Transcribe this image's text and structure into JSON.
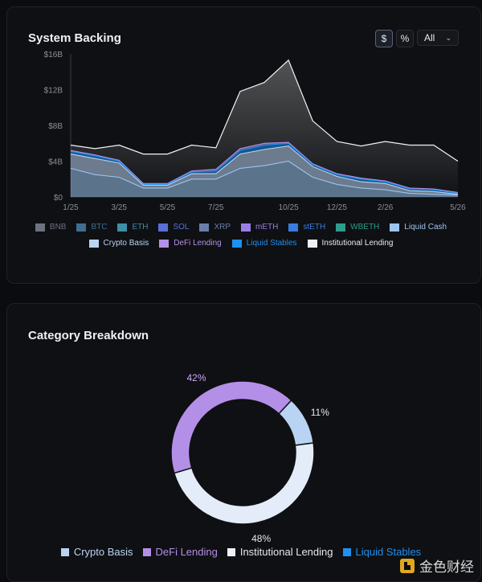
{
  "colors": {
    "BNB": "#6e7280",
    "BTC": "#3f6f8f",
    "ETH": "#3e8fa8",
    "SOL": "#5b6fd6",
    "XRP": "#6a7fa8",
    "mETH": "#9a7ee8",
    "stETH": "#3a7be0",
    "WBETH": "#2e9c8c",
    "Liquid Cash": "#9cc4f0",
    "Crypto Basis": "#b9d4f2",
    "DeFi Lending": "#b48fe8",
    "Liquid Stables": "#1e90f0",
    "Institutional Lending": "#eef0f4"
  },
  "system_backing": {
    "title": "System Backing",
    "toggle_dollar": "$",
    "toggle_percent": "%",
    "range_value": "All",
    "range_chevron_icon": "chevron-down-icon"
  },
  "category_breakdown": {
    "title": "Category Breakdown"
  },
  "watermark": {
    "text": "金色财经",
    "icon": "jinse-logo-icon"
  },
  "chart_data": [
    {
      "type": "area",
      "title": "System Backing",
      "x": [
        "1/25",
        "2/25",
        "3/25",
        "4/25",
        "5/25",
        "6/25",
        "7/25",
        "8/25",
        "9/25",
        "10/25",
        "11/25",
        "12/25",
        "1/26",
        "2/26",
        "3/26",
        "4/26",
        "5/26"
      ],
      "x_ticks": [
        "1/25",
        "3/25",
        "5/25",
        "7/25",
        "10/25",
        "12/25",
        "2/26",
        "5/26"
      ],
      "y_ticks": [
        "$0",
        "$4B",
        "$8B",
        "$12B",
        "$16B"
      ],
      "ylim": [
        0,
        16
      ],
      "y_unit": "$B",
      "stacked": true,
      "total": [
        5.8,
        5.4,
        5.8,
        4.8,
        4.8,
        5.8,
        5.5,
        11.8,
        12.8,
        15.3,
        8.5,
        6.2,
        5.7,
        6.2,
        5.8,
        5.8,
        4.0
      ],
      "series": [
        {
          "name": "Liquid Cash",
          "values": [
            3.2,
            2.5,
            2.2,
            1.0,
            1.0,
            2.0,
            2.0,
            3.2,
            3.5,
            4.0,
            2.2,
            1.4,
            1.0,
            0.8,
            0.4,
            0.3,
            0.2
          ]
        },
        {
          "name": "Crypto Basis",
          "values": [
            1.6,
            1.8,
            1.6,
            0.3,
            0.3,
            0.6,
            0.6,
            1.6,
            1.8,
            1.7,
            1.2,
            0.9,
            0.7,
            0.7,
            0.3,
            0.3,
            0.1
          ]
        },
        {
          "name": "Liquid Stables",
          "values": [
            0.3,
            0.3,
            0.2,
            0.1,
            0.1,
            0.2,
            0.3,
            0.4,
            0.5,
            0.3,
            0.2,
            0.2,
            0.3,
            0.2,
            0.2,
            0.2,
            0.1
          ]
        },
        {
          "name": "DeFi Lending",
          "values": [
            0.1,
            0.1,
            0.1,
            0.1,
            0.1,
            0.1,
            0.2,
            0.2,
            0.2,
            0.1,
            0.1,
            0.1,
            0.1,
            0.1,
            0.1,
            0.1,
            0.1
          ]
        },
        {
          "name": "Institutional Lending",
          "values": [
            0.6,
            0.7,
            1.7,
            3.3,
            3.3,
            2.9,
            2.4,
            6.4,
            6.8,
            9.2,
            4.8,
            3.6,
            3.6,
            4.4,
            4.8,
            4.9,
            3.5
          ]
        }
      ],
      "legend": {
        "placement": "bottom",
        "row1": [
          "BNB",
          "BTC",
          "ETH",
          "SOL",
          "XRP",
          "mETH",
          "stETH",
          "WBETH",
          "Liquid Cash"
        ],
        "row2": [
          "Crypto Basis",
          "DeFi Lending",
          "Liquid Stables",
          "Institutional Lending"
        ]
      }
    },
    {
      "type": "pie",
      "title": "Category Breakdown",
      "slices": [
        {
          "name": "Crypto Basis",
          "value": 11,
          "label": "11%"
        },
        {
          "name": "Liquid Stables",
          "value": 48,
          "label": "48%"
        },
        {
          "name": "DeFi Lending",
          "value": 42,
          "label": "42%"
        }
      ],
      "donut": true,
      "legend": {
        "placement": "bottom",
        "items": [
          "Crypto Basis",
          "DeFi Lending",
          "Institutional Lending",
          "Liquid Stables"
        ]
      }
    }
  ]
}
